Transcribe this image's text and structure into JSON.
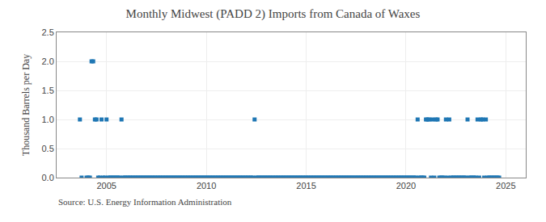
{
  "chart_data": {
    "type": "scatter",
    "title": "Monthly Midwest (PADD 2) Imports from Canada of Waxes",
    "ylabel": "Thousand Barrels per Day",
    "annotations": [
      "Source: U.S. Energy Information Administration"
    ],
    "marker": "square",
    "grid": true,
    "xlim": [
      2002.5,
      2026.0
    ],
    "xticks": [
      2005,
      2010,
      2015,
      2020,
      2025
    ],
    "ylim": [
      0.0,
      2.5
    ],
    "yticks": [
      {
        "value": 0.0,
        "label": "0.0"
      },
      0.5,
      {
        "value": 1.0,
        "label": "1.0"
      },
      1.5,
      {
        "value": 2.0,
        "label": "2.0"
      },
      2.5
    ],
    "x": [
      2003.667,
      2003.75,
      2004.0,
      2004.083,
      2004.167,
      2004.25,
      2004.333,
      2004.417,
      2004.5,
      2004.583,
      2004.667,
      2004.75,
      2004.833,
      2004.917,
      2005.0,
      2005.083,
      2005.167,
      2005.25,
      2005.333,
      2005.417,
      2005.5,
      2005.583,
      2005.667,
      2005.75,
      2005.833,
      2005.917,
      2006.0,
      2006.083,
      2006.167,
      2006.25,
      2006.333,
      2006.417,
      2006.5,
      2006.583,
      2006.667,
      2006.75,
      2006.833,
      2006.917,
      2007.0,
      2007.083,
      2007.167,
      2007.25,
      2007.333,
      2007.417,
      2007.5,
      2007.583,
      2007.667,
      2007.75,
      2007.833,
      2007.917,
      2008.0,
      2008.083,
      2008.167,
      2008.25,
      2008.333,
      2008.417,
      2008.5,
      2008.583,
      2008.667,
      2008.75,
      2008.833,
      2008.917,
      2009.0,
      2009.083,
      2009.167,
      2009.25,
      2009.333,
      2009.417,
      2009.5,
      2009.583,
      2009.667,
      2009.75,
      2009.833,
      2009.917,
      2010.0,
      2010.083,
      2010.167,
      2010.25,
      2010.333,
      2010.417,
      2010.5,
      2010.583,
      2010.667,
      2010.75,
      2010.833,
      2010.917,
      2011.0,
      2011.083,
      2011.167,
      2011.25,
      2011.333,
      2011.417,
      2011.5,
      2011.583,
      2011.667,
      2011.75,
      2011.833,
      2011.917,
      2012.0,
      2012.083,
      2012.167,
      2012.25,
      2012.333,
      2012.417,
      2012.5,
      2012.583,
      2012.667,
      2012.75,
      2012.833,
      2012.917,
      2013.0,
      2013.083,
      2013.167,
      2013.25,
      2013.333,
      2013.417,
      2013.5,
      2013.583,
      2013.667,
      2013.75,
      2013.833,
      2013.917,
      2014.0,
      2014.083,
      2014.167,
      2014.25,
      2014.333,
      2014.417,
      2014.5,
      2014.583,
      2014.667,
      2014.75,
      2014.833,
      2014.917,
      2015.0,
      2015.083,
      2015.167,
      2015.25,
      2015.333,
      2015.417,
      2015.5,
      2015.583,
      2015.667,
      2015.75,
      2015.833,
      2015.917,
      2016.0,
      2016.083,
      2016.167,
      2016.25,
      2016.333,
      2016.417,
      2016.5,
      2016.583,
      2016.667,
      2016.75,
      2016.833,
      2016.917,
      2017.0,
      2017.083,
      2017.167,
      2017.25,
      2017.333,
      2017.417,
      2017.5,
      2017.583,
      2017.667,
      2017.75,
      2017.833,
      2017.917,
      2018.0,
      2018.083,
      2018.167,
      2018.25,
      2018.333,
      2018.417,
      2018.5,
      2018.583,
      2018.667,
      2018.75,
      2018.833,
      2018.917,
      2019.0,
      2019.083,
      2019.167,
      2019.25,
      2019.333,
      2019.417,
      2019.5,
      2019.583,
      2019.667,
      2019.75,
      2019.833,
      2019.917,
      2020.0,
      2020.083,
      2020.167,
      2020.25,
      2020.333,
      2020.417,
      2020.5,
      2020.583,
      2020.667,
      2020.75,
      2020.833,
      2020.917,
      2021.0,
      2021.083,
      2021.167,
      2021.25,
      2021.333,
      2021.417,
      2021.5,
      2021.583,
      2021.667,
      2021.75,
      2021.833,
      2021.917,
      2022.0,
      2022.083,
      2022.167,
      2022.25,
      2022.333,
      2022.417,
      2022.5,
      2022.583,
      2022.667,
      2022.75,
      2022.833,
      2022.917,
      2023.0,
      2023.083,
      2023.167,
      2023.25,
      2023.333,
      2023.417,
      2023.5,
      2023.583,
      2023.667,
      2023.75,
      2023.833,
      2023.917,
      2024.0,
      2024.083,
      2024.167,
      2024.25,
      2024.333,
      2024.417,
      2024.5,
      2024.583,
      2024.667
    ],
    "values": [
      1,
      0,
      0,
      0,
      0,
      2,
      2,
      1,
      1,
      0,
      0,
      1,
      0,
      0,
      1,
      0,
      0,
      0,
      0,
      0,
      0,
      0,
      0,
      1,
      0,
      0,
      0,
      0,
      0,
      0,
      0,
      0,
      0,
      0,
      0,
      0,
      0,
      0,
      0,
      0,
      0,
      0,
      0,
      0,
      0,
      0,
      0,
      0,
      0,
      0,
      0,
      0,
      0,
      0,
      0,
      0,
      0,
      0,
      0,
      0,
      0,
      0,
      0,
      0,
      0,
      0,
      0,
      0,
      0,
      0,
      0,
      0,
      0,
      0,
      0,
      0,
      0,
      0,
      0,
      0,
      0,
      0,
      0,
      0,
      0,
      0,
      0,
      0,
      0,
      0,
      0,
      0,
      0,
      0,
      0,
      0,
      0,
      0,
      0,
      0,
      0,
      0,
      0,
      1,
      0,
      0,
      0,
      0,
      0,
      0,
      0,
      0,
      0,
      0,
      0,
      0,
      0,
      0,
      0,
      0,
      0,
      0,
      0,
      0,
      0,
      0,
      0,
      0,
      0,
      0,
      0,
      0,
      0,
      0,
      0,
      0,
      0,
      0,
      0,
      0,
      0,
      0,
      0,
      0,
      0,
      0,
      0,
      0,
      0,
      0,
      0,
      0,
      0,
      0,
      0,
      0,
      0,
      0,
      0,
      0,
      0,
      0,
      0,
      0,
      0,
      0,
      0,
      0,
      0,
      0,
      0,
      0,
      0,
      0,
      0,
      0,
      0,
      0,
      0,
      0,
      0,
      0,
      0,
      0,
      0,
      0,
      0,
      0,
      0,
      0,
      0,
      0,
      0,
      0,
      0,
      0,
      0,
      0,
      0,
      0,
      0,
      1,
      0,
      0,
      0,
      0,
      1,
      1,
      1,
      0,
      1,
      0,
      1,
      1,
      0,
      0,
      0,
      0,
      1,
      0,
      1,
      0,
      0,
      0,
      0,
      0,
      0,
      0,
      0,
      0,
      0,
      1,
      0,
      0,
      0,
      0,
      0,
      1,
      0,
      1,
      1,
      0,
      1,
      0,
      0,
      0,
      0,
      0,
      0,
      0,
      0
    ]
  }
}
